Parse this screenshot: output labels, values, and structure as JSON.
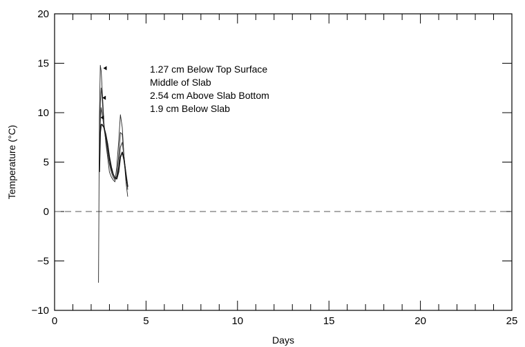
{
  "chart_data": {
    "type": "line",
    "title": "",
    "xlabel": "Days",
    "ylabel": "Temperature (°C)",
    "xlim": [
      0,
      25
    ],
    "ylim": [
      -10,
      20
    ],
    "x_ticks": [
      0,
      5,
      10,
      15,
      20,
      25
    ],
    "x_tick_labels": [
      "0",
      "5",
      "10",
      "15",
      "20",
      "25"
    ],
    "y_ticks": [
      -10,
      -5,
      0,
      5,
      10,
      15,
      20
    ],
    "y_tick_labels": [
      "−10",
      "−5",
      "0",
      "5",
      "10",
      "15",
      "20"
    ],
    "grid": false,
    "reference_line": {
      "y": 0,
      "style": "dashed"
    },
    "legend_position": "top-center",
    "series": [
      {
        "name": "1.27 cm Below Top Surface",
        "marker": "left-triangle",
        "x": [
          2.4,
          2.45,
          2.5,
          2.55,
          2.6,
          2.7,
          2.8,
          2.9,
          3.0,
          3.1,
          3.2,
          3.3,
          3.4,
          3.5,
          3.6,
          3.7,
          3.8,
          3.9,
          4.0
        ],
        "y": [
          -7.2,
          9.5,
          14.8,
          14.2,
          12.5,
          9.0,
          7.0,
          5.5,
          4.0,
          3.5,
          3.2,
          3.0,
          4.5,
          7.0,
          9.8,
          8.5,
          5.5,
          3.0,
          1.5
        ]
      },
      {
        "name": "Middle of Slab",
        "marker": "none",
        "x": [
          2.45,
          2.5,
          2.55,
          2.6,
          2.7,
          2.8,
          2.9,
          3.0,
          3.1,
          3.2,
          3.3,
          3.4,
          3.5,
          3.6,
          3.7,
          3.8,
          3.9,
          4.0
        ],
        "y": [
          5.0,
          11.0,
          12.5,
          11.5,
          8.5,
          7.2,
          6.0,
          4.8,
          4.0,
          3.5,
          3.2,
          3.6,
          5.5,
          8.0,
          7.8,
          5.5,
          3.5,
          2.5
        ]
      },
      {
        "name": "2.54 cm Above Slab Bottom",
        "marker": "none",
        "x": [
          2.45,
          2.5,
          2.55,
          2.6,
          2.7,
          2.8,
          2.9,
          3.0,
          3.1,
          3.2,
          3.3,
          3.4,
          3.5,
          3.6,
          3.7,
          3.8,
          3.9,
          4.0
        ],
        "y": [
          4.5,
          9.0,
          10.5,
          10.0,
          8.5,
          7.5,
          6.2,
          5.0,
          4.2,
          3.8,
          3.4,
          3.5,
          4.5,
          6.5,
          7.0,
          5.5,
          3.8,
          2.2
        ]
      },
      {
        "name": "1.9 cm Below Slab",
        "marker": "none",
        "x": [
          2.45,
          2.5,
          2.55,
          2.6,
          2.7,
          2.8,
          2.9,
          3.0,
          3.1,
          3.2,
          3.3,
          3.4,
          3.5,
          3.6,
          3.7,
          3.8,
          3.9,
          4.0
        ],
        "y": [
          4.0,
          8.0,
          8.8,
          8.8,
          8.5,
          7.8,
          6.8,
          5.5,
          4.5,
          3.8,
          3.4,
          3.3,
          4.0,
          5.5,
          6.0,
          5.2,
          3.8,
          2.5
        ]
      }
    ]
  }
}
